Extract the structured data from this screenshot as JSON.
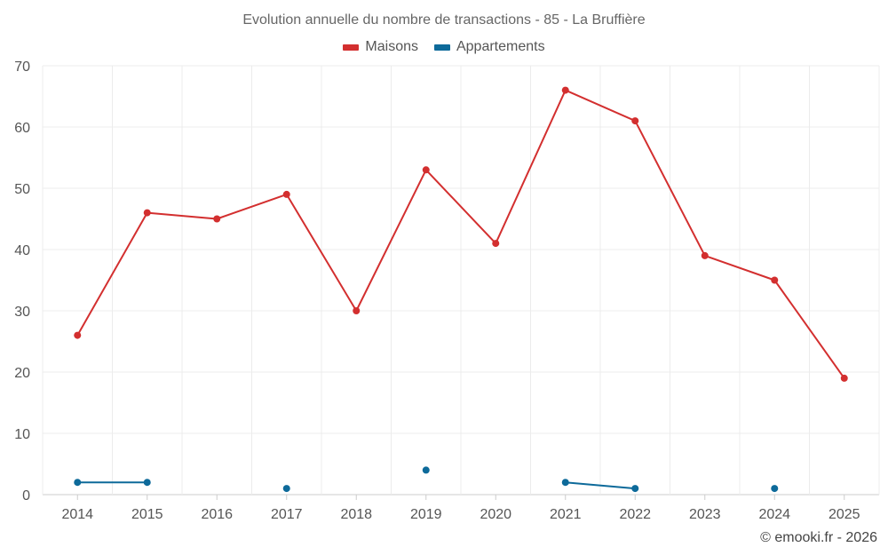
{
  "chart_data": {
    "type": "line",
    "title": "Evolution annuelle du nombre de transactions - 85 - La Bruffière",
    "categories": [
      "2014",
      "2015",
      "2016",
      "2017",
      "2018",
      "2019",
      "2020",
      "2021",
      "2022",
      "2023",
      "2024",
      "2025"
    ],
    "series": [
      {
        "name": "Maisons",
        "color": "#d32f2f",
        "values": [
          26,
          46,
          45,
          49,
          30,
          53,
          41,
          66,
          61,
          39,
          35,
          19
        ]
      },
      {
        "name": "Appartements",
        "color": "#0d6a9a",
        "values": [
          2,
          2,
          null,
          1,
          null,
          4,
          null,
          2,
          1,
          null,
          1,
          null
        ]
      }
    ],
    "ylim": [
      0,
      70
    ],
    "yticks": [
      0,
      10,
      20,
      30,
      40,
      50,
      60,
      70
    ],
    "xlabel": "",
    "ylabel": "",
    "grid": true,
    "legend": "top-center"
  },
  "credit": "© emooki.fr - 2026"
}
